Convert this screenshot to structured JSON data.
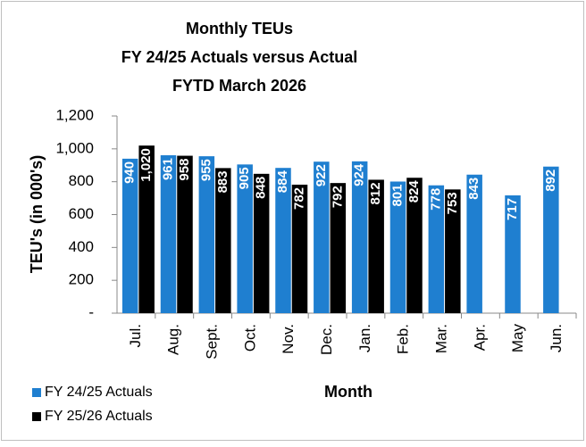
{
  "chart_data": {
    "type": "bar",
    "title": [
      "Monthly TEUs",
      "FY 24/25 Actuals versus Actual",
      "FYTD March 2026"
    ],
    "y_label": "TEU's (in 000's)",
    "x_label": "Month",
    "categories": [
      "Jul.",
      "Aug.",
      "Sept.",
      "Oct.",
      "Nov.",
      "Dec.",
      "Jan.",
      "Feb.",
      "Mar.",
      "Apr.",
      "May",
      "Jun."
    ],
    "series": [
      {
        "name": "FY 24/25 Actuals",
        "color": "#1f7fd0",
        "values": [
          940,
          961,
          955,
          905,
          884,
          922,
          924,
          801,
          778,
          843,
          717,
          892
        ]
      },
      {
        "name": "FY 25/26 Actuals",
        "color": "#000000",
        "values": [
          1020,
          958,
          883,
          848,
          782,
          792,
          812,
          824,
          753,
          null,
          null,
          null
        ],
        "value_labels": [
          "1,020",
          "958",
          "883",
          "848",
          "782",
          "792",
          "812",
          "824",
          "753",
          null,
          null,
          null
        ]
      }
    ],
    "ylim": [
      0,
      1200
    ],
    "yticks": [
      {
        "value": 0,
        "label": "-"
      },
      200,
      400,
      600,
      800,
      {
        "value": 1000,
        "label": "1,000"
      },
      {
        "value": 1200,
        "label": "1,200"
      }
    ],
    "legend": "bottom-left"
  }
}
